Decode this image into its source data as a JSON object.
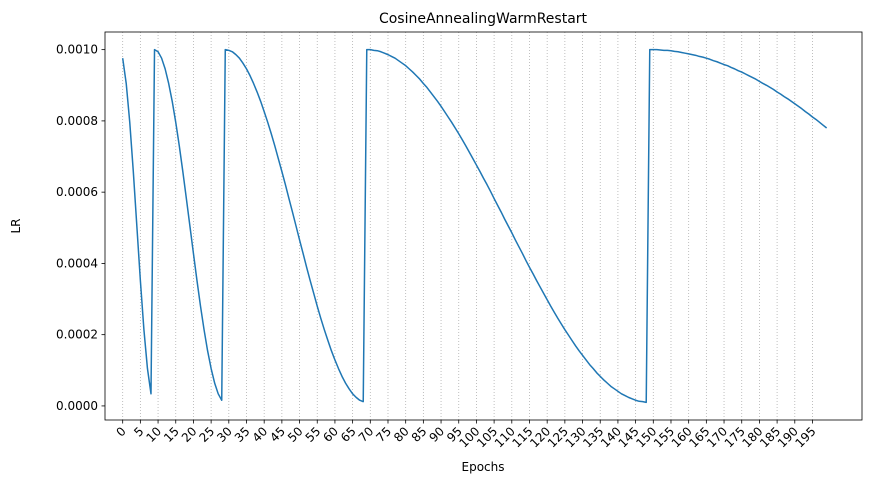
{
  "chart_data": {
    "type": "line",
    "title": "CosineAnnealingWarmRestart",
    "x_label": "Epochs",
    "y_label": "LR",
    "x": [
      0,
      1,
      2,
      3,
      4,
      5,
      6,
      7,
      8,
      9,
      10,
      11,
      12,
      13,
      14,
      15,
      16,
      17,
      18,
      19,
      20,
      21,
      22,
      23,
      24,
      25,
      26,
      27,
      28,
      29,
      30,
      31,
      32,
      33,
      34,
      35,
      36,
      37,
      38,
      39,
      40,
      41,
      42,
      43,
      44,
      45,
      46,
      47,
      48,
      49,
      50,
      51,
      52,
      53,
      54,
      55,
      56,
      57,
      58,
      59,
      60,
      61,
      62,
      63,
      64,
      65,
      66,
      67,
      68,
      69,
      70,
      71,
      72,
      73,
      74,
      75,
      76,
      77,
      78,
      79,
      80,
      81,
      82,
      83,
      84,
      85,
      86,
      87,
      88,
      89,
      90,
      91,
      92,
      93,
      94,
      95,
      96,
      97,
      98,
      99,
      100,
      101,
      102,
      103,
      104,
      105,
      106,
      107,
      108,
      109,
      110,
      111,
      112,
      113,
      114,
      115,
      116,
      117,
      118,
      119,
      120,
      121,
      122,
      123,
      124,
      125,
      126,
      127,
      128,
      129,
      130,
      131,
      132,
      133,
      134,
      135,
      136,
      137,
      138,
      139,
      140,
      141,
      142,
      143,
      144,
      145,
      146,
      147,
      148,
      149,
      150,
      151,
      152,
      153,
      154,
      155,
      156,
      157,
      158,
      159,
      160,
      161,
      162,
      163,
      164,
      165,
      166,
      167,
      168,
      169,
      170,
      171,
      172,
      173,
      174,
      175,
      176,
      177,
      178,
      179,
      180,
      181,
      182,
      183,
      184,
      185,
      186,
      187,
      188,
      189,
      190,
      191,
      192,
      193,
      194,
      195,
      196,
      197,
      198,
      199
    ],
    "values": [
      0.000976,
      0.000905,
      0.000796,
      0.000658,
      0.000505,
      0.000352,
      0.000214,
      0.000105,
      3.4e-05,
      0.001,
      0.000994,
      0.000976,
      0.000946,
      0.000905,
      0.000855,
      0.000796,
      0.00073,
      0.000658,
      0.000582,
      0.000505,
      0.000428,
      0.000352,
      0.00028,
      0.000214,
      0.000155,
      0.000105,
      6.4e-05,
      3.4e-05,
      1.6e-05,
      0.001,
      0.000998,
      0.000994,
      0.000986,
      0.000976,
      0.000962,
      0.000946,
      0.000927,
      0.000905,
      0.000881,
      0.000855,
      0.000826,
      0.000796,
      0.000764,
      0.00073,
      0.000694,
      0.000658,
      0.000621,
      0.000582,
      0.000544,
      0.000505,
      0.000466,
      0.000428,
      0.000389,
      0.000352,
      0.000316,
      0.00028,
      0.000246,
      0.000214,
      0.000184,
      0.000155,
      0.000129,
      0.000105,
      8.3e-05,
      6.4e-05,
      4.8e-05,
      3.4e-05,
      2.4e-05,
      1.6e-05,
      1.2e-05,
      0.001,
      0.001,
      0.000998,
      0.000997,
      0.000994,
      0.00099,
      0.000986,
      0.000981,
      0.000976,
      0.000969,
      0.000962,
      0.000955,
      0.000946,
      0.000937,
      0.000927,
      0.000917,
      0.000905,
      0.000894,
      0.000881,
      0.000868,
      0.000855,
      0.000841,
      0.000826,
      0.000811,
      0.000796,
      0.00078,
      0.000764,
      0.000747,
      0.00073,
      0.000712,
      0.000694,
      0.000676,
      0.000658,
      0.000639,
      0.000621,
      0.000602,
      0.000582,
      0.000563,
      0.000544,
      0.000524,
      0.000505,
      0.000486,
      0.000466,
      0.000447,
      0.000428,
      0.000408,
      0.000389,
      0.000371,
      0.000352,
      0.000334,
      0.000316,
      0.000298,
      0.00028,
      0.000263,
      0.000246,
      0.00023,
      0.000214,
      0.000199,
      0.000184,
      0.000169,
      0.000155,
      0.000142,
      0.000129,
      0.000116,
      0.000105,
      9.3e-05,
      8.3e-05,
      7.3e-05,
      6.4e-05,
      5.5e-05,
      4.8e-05,
      4.1e-05,
      3.4e-05,
      2.9e-05,
      2.4e-05,
      2e-05,
      1.6e-05,
      1.3e-05,
      1.2e-05,
      1e-05,
      0.001,
      0.001,
      0.001,
      0.000999,
      0.000998,
      0.000998,
      0.000997,
      0.000995,
      0.000994,
      0.000992,
      0.00099,
      0.000988,
      0.000986,
      0.000984,
      0.000981,
      0.000979,
      0.000976,
      0.000973,
      0.000969,
      0.000966,
      0.000962,
      0.000958,
      0.000955,
      0.00095,
      0.000946,
      0.000941,
      0.000937,
      0.000932,
      0.000927,
      0.000922,
      0.000917,
      0.000911,
      0.000905,
      0.0009,
      0.000894,
      0.000888,
      0.000881,
      0.000875,
      0.000868,
      0.000862,
      0.000855,
      0.000848,
      0.000841,
      0.000834,
      0.000826,
      0.000819,
      0.000811,
      0.000804,
      0.000796,
      0.000788,
      0.00078
    ],
    "color": "#1f77b4",
    "xlim": [
      -5,
      209
    ],
    "ylim": [
      -3.95e-05,
      0.0010495
    ],
    "xticks": [
      0,
      5,
      10,
      15,
      20,
      25,
      30,
      35,
      40,
      45,
      50,
      55,
      60,
      65,
      70,
      75,
      80,
      85,
      90,
      95,
      100,
      105,
      110,
      115,
      120,
      125,
      130,
      135,
      140,
      145,
      150,
      155,
      160,
      165,
      170,
      175,
      180,
      185,
      190,
      195
    ],
    "yticks": [
      {
        "value": 0,
        "label": "0.0000"
      },
      {
        "value": 0.0002,
        "label": "0.0002"
      },
      {
        "value": 0.0004,
        "label": "0.0004"
      },
      {
        "value": 0.0006,
        "label": "0.0006"
      },
      {
        "value": 0.0008,
        "label": "0.0008"
      },
      {
        "value": 0.001,
        "label": "0.0010"
      }
    ],
    "grid": "x"
  }
}
